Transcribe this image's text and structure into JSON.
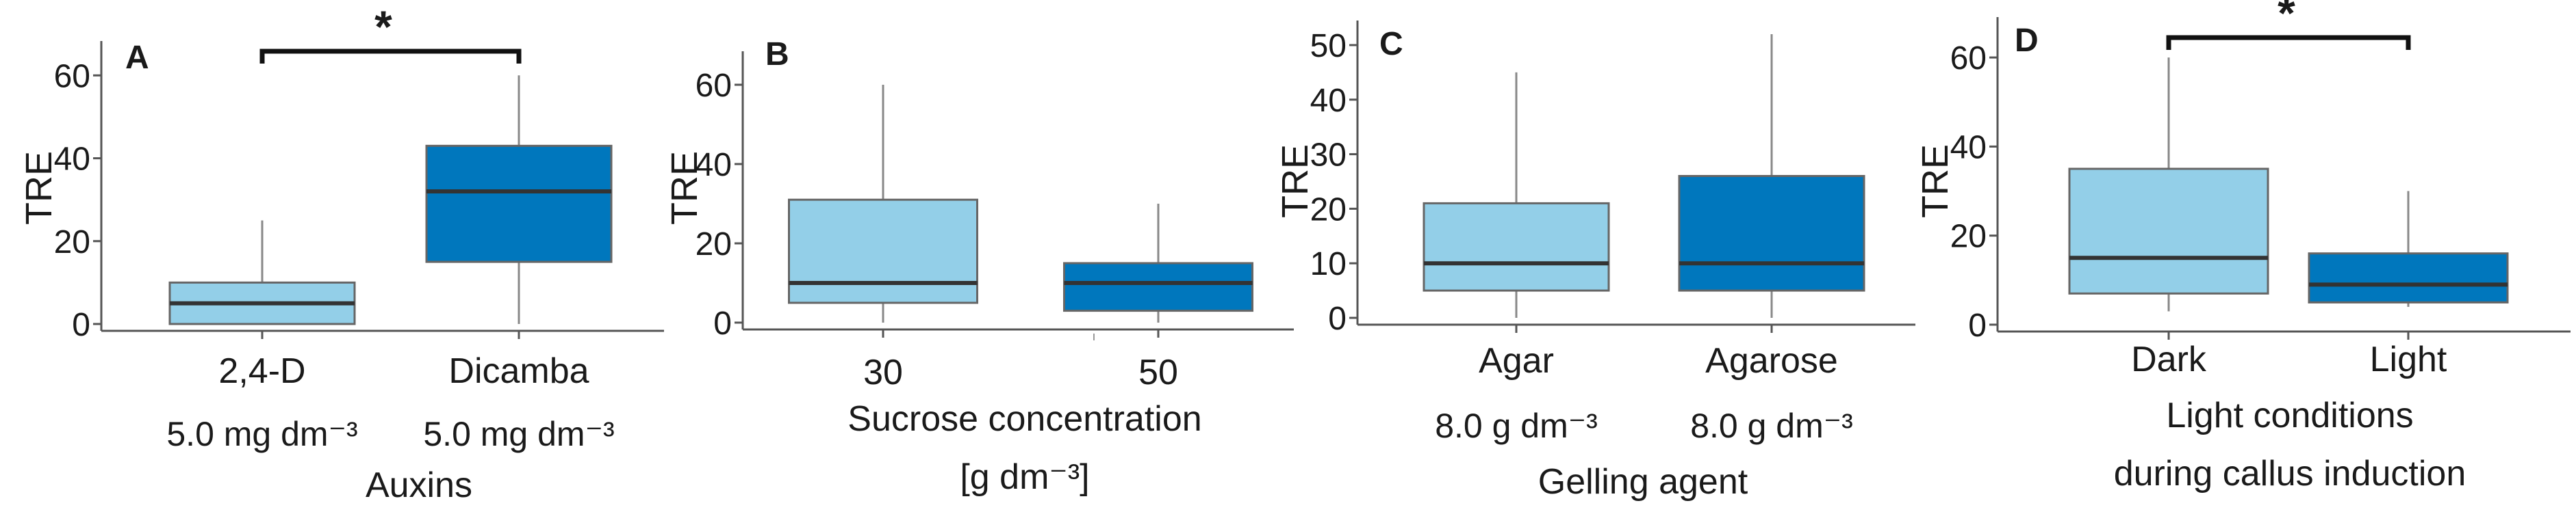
{
  "figure": {
    "name": "TRE boxplot panels A–D"
  },
  "colors": {
    "light": "#93cfe8",
    "dark": "#0077bd",
    "axis": "#555555",
    "median": "#333333",
    "whisker": "#888888"
  },
  "chart_data": [
    {
      "type": "boxplot",
      "panel": "A",
      "ylabel": "TRE",
      "ylim": [
        0,
        65
      ],
      "yticks": [
        "0",
        "20",
        "40",
        "60"
      ],
      "categories": [
        "2,4-D",
        "Dicamba"
      ],
      "sublabels": [
        "5.0 mg dm⁻³",
        "5.0 mg dm⁻³"
      ],
      "xlabel": [
        "Auxins"
      ],
      "significance": "*",
      "boxes": [
        {
          "name": "2,4-D",
          "min": 0,
          "q1": 0,
          "median": 5,
          "q3": 10,
          "max": 25,
          "color": "light"
        },
        {
          "name": "Dicamba",
          "min": 0,
          "q1": 15,
          "median": 32,
          "q3": 43,
          "max": 60,
          "color": "dark"
        }
      ]
    },
    {
      "type": "boxplot",
      "panel": "B",
      "ylabel": "TRE",
      "ylim": [
        0,
        65
      ],
      "yticks": [
        "0",
        "20",
        "40",
        "60"
      ],
      "categories": [
        "30",
        "50"
      ],
      "sublabels": [],
      "xlabel": [
        "Sucrose concentration",
        "[g dm⁻³]"
      ],
      "significance": "",
      "boxes": [
        {
          "name": "30",
          "min": 0,
          "q1": 5,
          "median": 10,
          "q3": 31,
          "max": 60,
          "color": "light"
        },
        {
          "name": "50",
          "min": 0,
          "q1": 3,
          "median": 10,
          "q3": 15,
          "max": 30,
          "color": "dark"
        }
      ]
    },
    {
      "type": "boxplot",
      "panel": "C",
      "ylabel": "TRE",
      "ylim": [
        0,
        52
      ],
      "yticks": [
        "0",
        "10",
        "20",
        "30",
        "40",
        "50"
      ],
      "categories": [
        "Agar",
        "Agarose"
      ],
      "sublabels": [
        "8.0 g dm⁻³",
        "8.0 g dm⁻³"
      ],
      "xlabel": [
        "Gelling agent"
      ],
      "significance": "",
      "boxes": [
        {
          "name": "Agar",
          "min": 0,
          "q1": 5,
          "median": 10,
          "q3": 21,
          "max": 45,
          "color": "light"
        },
        {
          "name": "Agarose",
          "min": 0,
          "q1": 5,
          "median": 10,
          "q3": 26,
          "max": 52,
          "color": "dark"
        }
      ]
    },
    {
      "type": "boxplot",
      "panel": "D",
      "ylabel": "TRE",
      "ylim": [
        0,
        66
      ],
      "yticks": [
        "0",
        "20",
        "40",
        "60"
      ],
      "categories": [
        "Dark",
        "Light"
      ],
      "sublabels": [],
      "xlabel": [
        "Light conditions",
        "during callus induction"
      ],
      "significance": "*",
      "boxes": [
        {
          "name": "Dark",
          "min": 3,
          "q1": 7,
          "median": 15,
          "q3": 35,
          "max": 60,
          "color": "light"
        },
        {
          "name": "Light",
          "min": 4,
          "q1": 5,
          "median": 9,
          "q3": 16,
          "max": 30,
          "color": "dark"
        }
      ]
    }
  ]
}
